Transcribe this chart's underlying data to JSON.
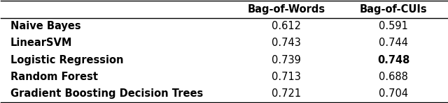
{
  "col_labels": [
    "",
    "Bag-of-Words",
    "Bag-of-CUIs"
  ],
  "rows": [
    [
      "Naive Bayes",
      "0.612",
      "0.591"
    ],
    [
      "LinearSVM",
      "0.743",
      "0.744"
    ],
    [
      "Logistic Regression",
      "0.739",
      "0.748"
    ],
    [
      "Random Forest",
      "0.713",
      "0.688"
    ],
    [
      "Gradient Boosting Decision Trees",
      "0.721",
      "0.704"
    ]
  ],
  "bold_cells": [
    [
      3,
      2
    ]
  ],
  "bg_color": "#ffffff",
  "fig_width": 6.4,
  "fig_height": 1.48,
  "font_size": 10.5
}
